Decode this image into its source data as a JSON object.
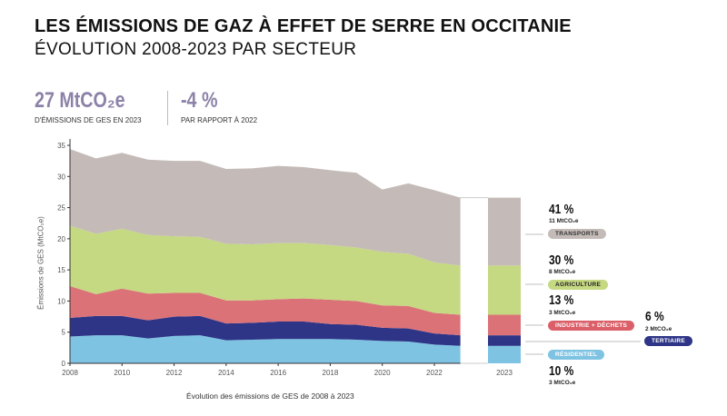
{
  "header": {
    "title": "LES ÉMISSIONS DE GAZ À EFFET DE SERRE EN OCCITANIE",
    "subtitle": "ÉVOLUTION 2008-2023 PAR SECTEUR"
  },
  "kpis": [
    {
      "value": "27 MtCO₂e",
      "label": "D'ÉMISSIONS DE GES EN 2023"
    },
    {
      "value": "-4 %",
      "label": "PAR RAPPORT À 2022"
    }
  ],
  "chart_data": {
    "type": "area",
    "stacked": true,
    "xlabel": "Évolution des émissions de GES de 2008 à 2023",
    "ylabel": "Émissions de GES (MtCO₂e)",
    "ylim": [
      0,
      35
    ],
    "yticks": [
      "0",
      "5",
      "10",
      "15",
      "20",
      "25",
      "30",
      "35"
    ],
    "xticks": [
      "2008",
      "2010",
      "2012",
      "2014",
      "2016",
      "2018",
      "2020",
      "2022"
    ],
    "bar_label": "2023",
    "grid": false,
    "x": [
      2008,
      2009,
      2010,
      2011,
      2012,
      2013,
      2014,
      2015,
      2016,
      2017,
      2018,
      2019,
      2020,
      2021,
      2022,
      2023
    ],
    "series": [
      {
        "name": "RÉSIDENTIEL",
        "color": "#7fc3e3",
        "values": [
          4.3,
          4.5,
          4.5,
          4.0,
          4.4,
          4.5,
          3.7,
          3.8,
          3.9,
          3.9,
          3.9,
          3.8,
          3.6,
          3.5,
          3.0,
          2.8
        ]
      },
      {
        "name": "TERTIAIRE",
        "color": "#2e3587",
        "values": [
          3.0,
          3.1,
          3.1,
          2.9,
          3.1,
          3.1,
          2.7,
          2.7,
          2.8,
          2.8,
          2.4,
          2.4,
          2.1,
          2.1,
          1.8,
          1.7
        ]
      },
      {
        "name": "INDUSTRIE + DÉCHETS",
        "color": "#db7278",
        "values": [
          5.1,
          3.5,
          4.4,
          4.3,
          3.8,
          3.7,
          3.7,
          3.6,
          3.6,
          3.7,
          3.9,
          3.8,
          3.6,
          3.6,
          3.3,
          3.3
        ]
      },
      {
        "name": "AGRICULTURE",
        "color": "#c5d882",
        "values": [
          9.7,
          9.7,
          9.6,
          9.4,
          9.1,
          9.0,
          9.1,
          9.0,
          9.0,
          8.9,
          8.8,
          8.6,
          8.6,
          8.4,
          8.1,
          7.9
        ]
      },
      {
        "name": "TRANSPORTS",
        "color": "#c4bbb8",
        "values": [
          12.3,
          12.1,
          12.2,
          12.1,
          12.1,
          12.2,
          12.0,
          12.2,
          12.4,
          12.2,
          12.0,
          12.0,
          10.0,
          11.3,
          11.6,
          10.9
        ]
      }
    ],
    "annotations_2023": [
      {
        "sector": "TRANSPORTS",
        "pct": "41 %",
        "amount": "11 MtCO₂e",
        "pill_bg": "#c4bbb8",
        "pill_fg": "#333"
      },
      {
        "sector": "AGRICULTURE",
        "pct": "30 %",
        "amount": "8 MtCO₂e",
        "pill_bg": "#c5d882",
        "pill_fg": "#222"
      },
      {
        "sector": "INDUSTRIE + DÉCHETS",
        "pct": "13 %",
        "amount": "3 MtCO₂e",
        "pill_bg": "#db5f68",
        "pill_fg": "#fff"
      },
      {
        "sector": "TERTIAIRE",
        "pct": "6 %",
        "amount": "2 MtCO₂e",
        "pill_bg": "#2e3587",
        "pill_fg": "#fff"
      },
      {
        "sector": "RÉSIDENTIEL",
        "pct": "10 %",
        "amount": "3 MtCO₂e",
        "pill_bg": "#7fc3e3",
        "pill_fg": "#fff"
      }
    ]
  }
}
